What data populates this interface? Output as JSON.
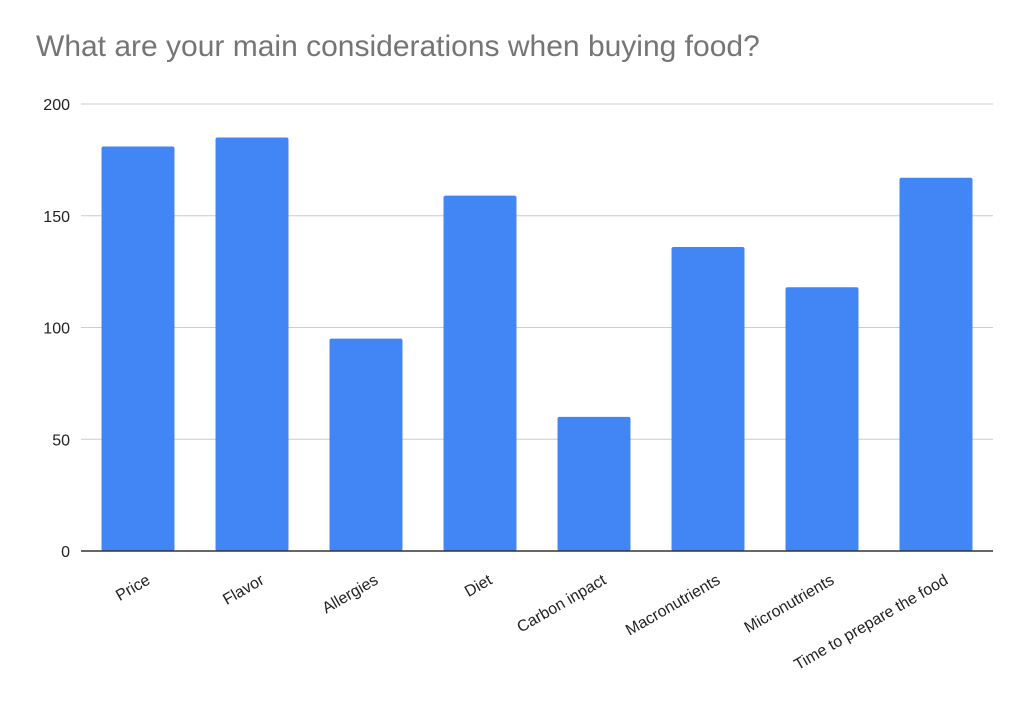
{
  "chart_data": {
    "type": "bar",
    "title": "What are your main considerations when buying food?",
    "xlabel": "",
    "ylabel": "",
    "categories": [
      "Price",
      "Flavor",
      "Allergies",
      "Diet",
      "Carbon inpact",
      "Macronutrients",
      "Micronutrients",
      "Time to prepare the food"
    ],
    "values": [
      181,
      185,
      95,
      159,
      60,
      136,
      118,
      167
    ],
    "ylim": [
      0,
      200
    ],
    "yticks": [
      "0",
      "50",
      "100",
      "150",
      "200"
    ],
    "grid": true,
    "legend": "none",
    "bar_color": "#4285f4",
    "gridline_color": "#cccccc",
    "axis_color": "#333333"
  }
}
